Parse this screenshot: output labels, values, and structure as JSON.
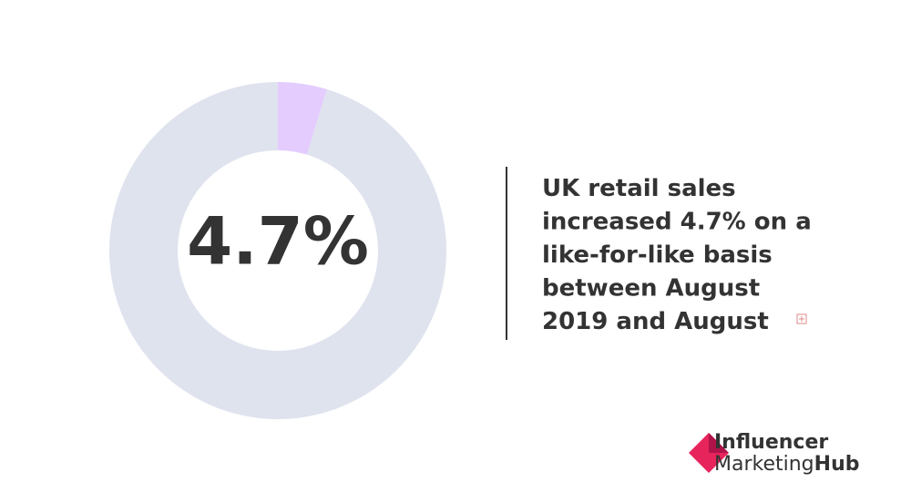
{
  "chart_data": {
    "type": "donut",
    "categories": [
      null,
      null
    ],
    "values": [
      4.7,
      95.3
    ],
    "value_labels": [
      "4.7%",
      null
    ],
    "colors": [
      "#e4ccff",
      "#dfe3ee"
    ],
    "annotation_lines": [
      "UK retail sales",
      "increased 4.7% on a",
      "like-for-like basis",
      "between August",
      "2019 and August"
    ]
  },
  "logo": {
    "line1": "Influencer",
    "line2a": "Marketing",
    "line2b": "Hub"
  }
}
